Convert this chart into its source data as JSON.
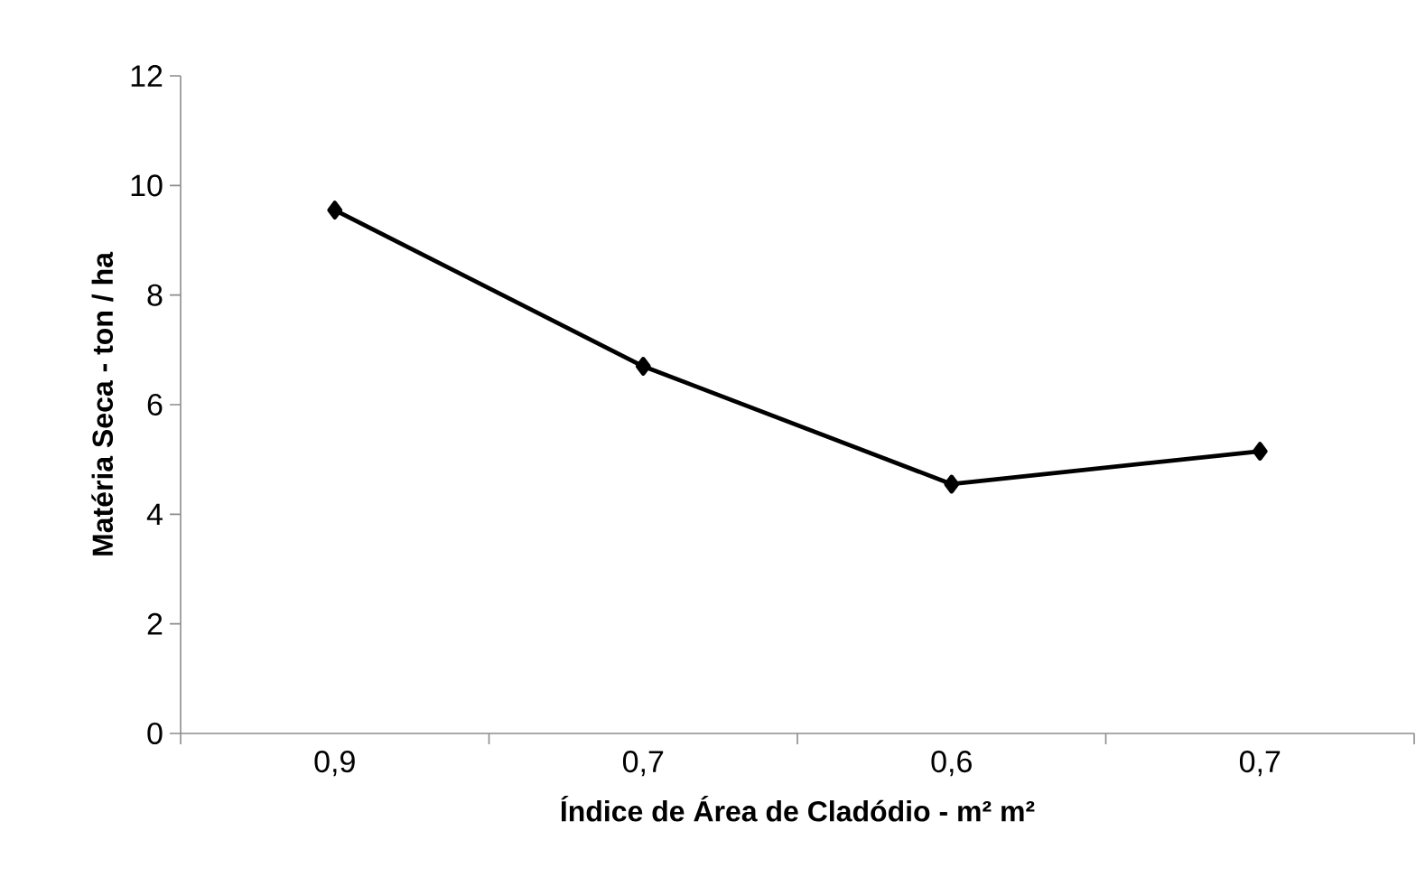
{
  "chart_data": {
    "type": "line",
    "xlabel": "Índice de Área de Cladódio - m² m²",
    "ylabel": "Matéria Seca - ton / ha",
    "categories": [
      "0,9",
      "0,7",
      "0,6",
      "0,7"
    ],
    "series": [
      {
        "color": "#000000",
        "values": [
          9.55,
          6.7,
          4.55,
          5.15
        ]
      }
    ],
    "ylim": [
      0,
      12
    ],
    "yticks": [
      0,
      2,
      4,
      6,
      8,
      10,
      12
    ],
    "marker": "diamond",
    "line_style": "solid",
    "grid": false
  }
}
